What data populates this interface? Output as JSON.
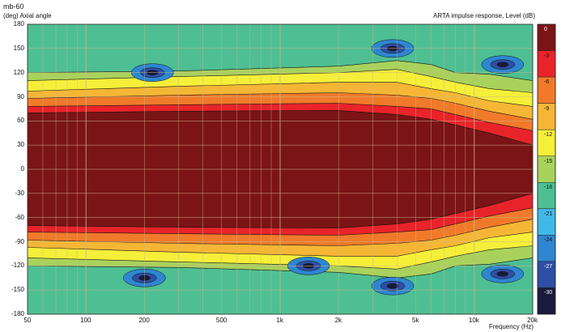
{
  "chart_data": {
    "type": "heatmap",
    "title": "mb-60",
    "ylabel": "(deg)  Axial angle",
    "xlabel": "Frequency  (Hz)",
    "colorbar_label": "ARTA impulse response, Level  (dB)",
    "x_scale": "log",
    "xlim": [
      50,
      20000
    ],
    "ylim": [
      -180,
      180
    ],
    "x_ticks": [
      {
        "value": 50,
        "label": "50"
      },
      {
        "value": 100,
        "label": "100"
      },
      {
        "value": 200,
        "label": "200"
      },
      {
        "value": 500,
        "label": "500"
      },
      {
        "value": 1000,
        "label": "1k"
      },
      {
        "value": 2000,
        "label": "2k"
      },
      {
        "value": 5000,
        "label": "5k"
      },
      {
        "value": 10000,
        "label": "10k"
      },
      {
        "value": 20000,
        "label": "20k"
      }
    ],
    "y_ticks": [
      180,
      150,
      120,
      90,
      60,
      30,
      0,
      -30,
      -60,
      -90,
      -120,
      -150,
      -180
    ],
    "grid": true,
    "legend": "right",
    "levels": [
      {
        "label": "0",
        "color": "#7b1416"
      },
      {
        "label": "-3",
        "color": "#e8242a"
      },
      {
        "label": "-6",
        "color": "#f07a2a"
      },
      {
        "label": "-9",
        "color": "#f6b635"
      },
      {
        "label": "-12",
        "color": "#f6ef3a"
      },
      {
        "label": "-15",
        "color": "#a9d25c"
      },
      {
        "label": "-18",
        "color": "#4ebf93"
      },
      {
        "label": "-21",
        "color": "#40b9e8"
      },
      {
        "label": "-24",
        "color": "#2f86d0"
      },
      {
        "label": "-27",
        "color": "#2e4fa5"
      },
      {
        "label": "-30",
        "color": "#1a1a3a"
      }
    ],
    "contour_bands": [
      {
        "level": "-3",
        "points": [
          [
            50,
            70
          ],
          [
            300,
            72
          ],
          [
            2000,
            73
          ],
          [
            4000,
            68
          ],
          [
            6000,
            62
          ],
          [
            8000,
            55
          ],
          [
            12000,
            45
          ],
          [
            20000,
            30
          ]
        ]
      },
      {
        "level": "-6",
        "points": [
          [
            50,
            78
          ],
          [
            300,
            80
          ],
          [
            2000,
            82
          ],
          [
            4000,
            78
          ],
          [
            6000,
            75
          ],
          [
            8000,
            68
          ],
          [
            12000,
            58
          ],
          [
            20000,
            48
          ]
        ]
      },
      {
        "level": "-9",
        "points": [
          [
            50,
            88
          ],
          [
            300,
            92
          ],
          [
            2000,
            95
          ],
          [
            4000,
            92
          ],
          [
            6000,
            88
          ],
          [
            8000,
            82
          ],
          [
            12000,
            72
          ],
          [
            20000,
            62
          ]
        ]
      },
      {
        "level": "-12",
        "points": [
          [
            50,
            97
          ],
          [
            300,
            103
          ],
          [
            2000,
            108
          ],
          [
            4000,
            108
          ],
          [
            6000,
            100
          ],
          [
            8000,
            95
          ],
          [
            12000,
            85
          ],
          [
            20000,
            78
          ]
        ]
      },
      {
        "level": "-15",
        "points": [
          [
            50,
            110
          ],
          [
            300,
            115
          ],
          [
            2000,
            120
          ],
          [
            4000,
            124
          ],
          [
            6000,
            115
          ],
          [
            8000,
            108
          ],
          [
            12000,
            100
          ],
          [
            20000,
            95
          ]
        ]
      },
      {
        "level": "-18",
        "points": [
          [
            50,
            120
          ],
          [
            300,
            122
          ],
          [
            2000,
            128
          ],
          [
            4000,
            135
          ],
          [
            6000,
            130
          ],
          [
            8000,
            120
          ],
          [
            12000,
            118
          ],
          [
            20000,
            110
          ]
        ]
      }
    ],
    "nulls": [
      {
        "x": 220,
        "y": 120,
        "level": "-30"
      },
      {
        "x": 3800,
        "y": 150,
        "level": "-30"
      },
      {
        "x": 14000,
        "y": 130,
        "level": "-30"
      },
      {
        "x": 200,
        "y": -135,
        "level": "-30"
      },
      {
        "x": 1400,
        "y": -120,
        "level": "-30"
      },
      {
        "x": 3800,
        "y": -145,
        "level": "-30"
      },
      {
        "x": 14000,
        "y": -130,
        "level": "-30"
      }
    ]
  }
}
